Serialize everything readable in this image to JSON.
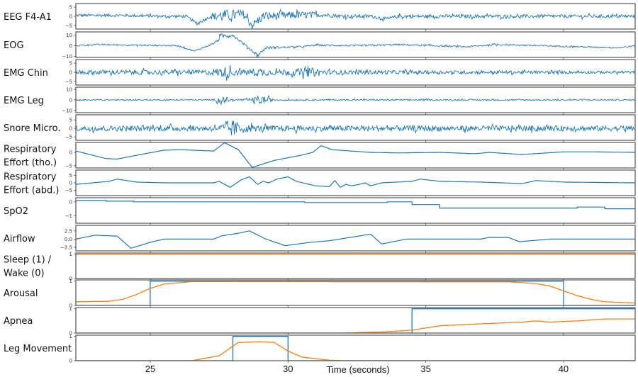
{
  "chart_data": {
    "type": "line",
    "xlabel": "Time (seconds)",
    "xlim": [
      22.3,
      42.6
    ],
    "xticks": [
      25,
      30,
      35,
      40
    ],
    "colors": {
      "signal": "#1f77b4",
      "prediction": "#ff7f0e"
    },
    "panels": [
      {
        "label": [
          "EEG F4-A1"
        ],
        "ylim": [
          -7,
          7
        ],
        "yticks": [
          5,
          0,
          -5
        ],
        "ytick_labels": [
          "5",
          "0",
          "−5"
        ],
        "kind": "noisy",
        "base": [
          [
            22.3,
            0.5
          ],
          [
            24,
            0.5
          ],
          [
            25.5,
            0
          ],
          [
            26.3,
            0
          ],
          [
            26.7,
            -4
          ],
          [
            27.2,
            0
          ],
          [
            28.4,
            1
          ],
          [
            28.7,
            -5
          ],
          [
            29.1,
            0
          ],
          [
            31,
            1
          ],
          [
            32,
            0
          ],
          [
            33,
            0
          ],
          [
            33.6,
            -1.5
          ],
          [
            34,
            0
          ],
          [
            42.6,
            0
          ]
        ],
        "noise_amp": [
          [
            22.3,
            0.8
          ],
          [
            27.2,
            0.8
          ],
          [
            27.5,
            3.5
          ],
          [
            28.4,
            2.5
          ],
          [
            30.5,
            2
          ],
          [
            31.5,
            1
          ],
          [
            42.6,
            0.9
          ]
        ]
      },
      {
        "label": [
          "EOG"
        ],
        "ylim": [
          -11,
          13
        ],
        "yticks": [
          10,
          0,
          -10
        ],
        "ytick_labels": [
          "10",
          "0",
          "−10"
        ],
        "kind": "noisy",
        "base": [
          [
            22.3,
            0
          ],
          [
            23,
            1
          ],
          [
            26,
            0
          ],
          [
            26.6,
            -5
          ],
          [
            27,
            -1
          ],
          [
            27.3,
            2
          ],
          [
            27.6,
            9
          ],
          [
            28,
            10
          ],
          [
            28.9,
            -9
          ],
          [
            29.2,
            -2
          ],
          [
            30.5,
            -1
          ],
          [
            31,
            0.5
          ],
          [
            32.5,
            0
          ],
          [
            34,
            1
          ],
          [
            36.5,
            -1
          ],
          [
            37.5,
            1
          ],
          [
            38.5,
            0.5
          ],
          [
            42,
            -2
          ],
          [
            42.6,
            0
          ]
        ],
        "noise_amp": [
          [
            22.3,
            0.6
          ],
          [
            27.4,
            0.6
          ],
          [
            27.5,
            2.5
          ],
          [
            28.2,
            1
          ],
          [
            28.9,
            1.5
          ],
          [
            30,
            0.8
          ],
          [
            42.6,
            0.6
          ]
        ]
      },
      {
        "label": [
          "EMG Chin"
        ],
        "ylim": [
          -7,
          7
        ],
        "yticks": [
          5,
          0,
          -5
        ],
        "ytick_labels": [
          "5",
          "0",
          "−5"
        ],
        "kind": "noisy",
        "base": [
          [
            22.3,
            0
          ],
          [
            42.6,
            0
          ]
        ],
        "noise_amp": [
          [
            22.3,
            1.3
          ],
          [
            27,
            1.3
          ],
          [
            27.7,
            3
          ],
          [
            28.3,
            1.5
          ],
          [
            29,
            2.5
          ],
          [
            29.4,
            1.5
          ],
          [
            31,
            2.5
          ],
          [
            31.5,
            1.2
          ],
          [
            35,
            1
          ],
          [
            42.6,
            0.7
          ]
        ]
      },
      {
        "label": [
          "EMG Leg"
        ],
        "ylim": [
          -12,
          12
        ],
        "yticks": [
          10,
          0,
          -10
        ],
        "ytick_labels": [
          "10",
          "0",
          "−10"
        ],
        "kind": "noisy",
        "base": [
          [
            22.3,
            0
          ],
          [
            42.6,
            0
          ]
        ],
        "noise_amp": [
          [
            22.3,
            0.6
          ],
          [
            27.3,
            0.6
          ],
          [
            27.6,
            4
          ],
          [
            28,
            0.8
          ],
          [
            28.6,
            1
          ],
          [
            29,
            4.5
          ],
          [
            29.5,
            0.7
          ],
          [
            42.6,
            0.6
          ]
        ]
      },
      {
        "label": [
          "Snore Micro."
        ],
        "ylim": [
          -7,
          8
        ],
        "yticks": [
          5,
          0,
          -5
        ],
        "ytick_labels": [
          "5",
          "0",
          "−5"
        ],
        "kind": "noisy",
        "base": [
          [
            22.3,
            0
          ],
          [
            42.6,
            0
          ]
        ],
        "noise_amp": [
          [
            22.3,
            1.6
          ],
          [
            27.5,
            1.6
          ],
          [
            27.9,
            5.5
          ],
          [
            28.4,
            2.5
          ],
          [
            29,
            1.7
          ],
          [
            42.6,
            1.6
          ]
        ]
      },
      {
        "label": [
          "Respiratory",
          "Effort (tho.)"
        ],
        "ylim": [
          -5.8,
          3.7
        ],
        "yticks": [
          0,
          -5
        ],
        "ytick_labels": [
          "0",
          "−5"
        ],
        "kind": "smooth",
        "points": [
          [
            22.3,
            0.5
          ],
          [
            23.4,
            -2.3
          ],
          [
            23.8,
            -2.5
          ],
          [
            24.8,
            -0.5
          ],
          [
            25.5,
            0.8
          ],
          [
            26.1,
            1.0
          ],
          [
            27.3,
            0.5
          ],
          [
            27.7,
            3.6
          ],
          [
            28.2,
            1
          ],
          [
            28.7,
            -5.6
          ],
          [
            29.5,
            -3
          ],
          [
            30.5,
            -1
          ],
          [
            30.9,
            0
          ],
          [
            31.2,
            2.5
          ],
          [
            31.6,
            1
          ],
          [
            33,
            0
          ],
          [
            34,
            -0.2
          ],
          [
            35.5,
            0
          ],
          [
            36.8,
            -0.5
          ],
          [
            37.3,
            0
          ],
          [
            38.5,
            -0.8
          ],
          [
            40,
            0.2
          ],
          [
            41,
            0.2
          ],
          [
            42.6,
            0
          ]
        ]
      },
      {
        "label": [
          "Respiratory",
          "Effort (abd.)"
        ],
        "ylim": [
          -8.5,
          8.5
        ],
        "yticks": [
          5,
          0,
          -5
        ],
        "ytick_labels": [
          "5",
          "0",
          "−5"
        ],
        "kind": "smooth",
        "points": [
          [
            22.3,
            -1
          ],
          [
            23.5,
            1
          ],
          [
            23.8,
            2.5
          ],
          [
            24.5,
            0.5
          ],
          [
            25.5,
            0
          ],
          [
            27.3,
            0
          ],
          [
            27.5,
            1
          ],
          [
            27.9,
            -3
          ],
          [
            28.3,
            2
          ],
          [
            28.6,
            4
          ],
          [
            28.9,
            -1
          ],
          [
            29.1,
            1
          ],
          [
            29.3,
            0
          ],
          [
            29.6,
            2.5
          ],
          [
            30,
            4
          ],
          [
            30.3,
            1
          ],
          [
            31,
            -2
          ],
          [
            31.5,
            -2.5
          ],
          [
            31.7,
            1.5
          ],
          [
            31.9,
            -3
          ],
          [
            32.1,
            -1
          ],
          [
            32.3,
            -2
          ],
          [
            32.6,
            -1
          ],
          [
            32.8,
            0
          ],
          [
            33,
            -2
          ],
          [
            33.4,
            0
          ],
          [
            34.5,
            1
          ],
          [
            34.8,
            2.5
          ],
          [
            35.5,
            1
          ],
          [
            37,
            0.5
          ],
          [
            38.5,
            -0.5
          ],
          [
            39,
            1.5
          ],
          [
            40,
            0.5
          ],
          [
            42.6,
            0
          ]
        ]
      },
      {
        "label": [
          "SpO2"
        ],
        "ylim": [
          -1.55,
          0.3
        ],
        "yticks": [
          0,
          -1
        ],
        "ytick_labels": [
          "0",
          "−1"
        ],
        "kind": "step",
        "points": [
          [
            22.3,
            0.1
          ],
          [
            23.4,
            0.05
          ],
          [
            24.4,
            0
          ],
          [
            30.6,
            -0.05
          ],
          [
            33.6,
            0
          ],
          [
            34.5,
            -0.2
          ],
          [
            35.5,
            -0.45
          ],
          [
            40.5,
            -0.38
          ],
          [
            41.5,
            -0.5
          ],
          [
            42.6,
            -0.5
          ]
        ]
      },
      {
        "label": [
          "Airflow"
        ],
        "ylim": [
          -3.6,
          4.2
        ],
        "yticks": [
          2.5,
          0,
          -2.5
        ],
        "ytick_labels": [
          "2.5",
          "0.0",
          "−2.5"
        ],
        "kind": "smooth",
        "points": [
          [
            22.3,
            0
          ],
          [
            23,
            1.2
          ],
          [
            23.8,
            0.9
          ],
          [
            24.3,
            -2.8
          ],
          [
            25,
            -1
          ],
          [
            25.5,
            0
          ],
          [
            27.3,
            0
          ],
          [
            27.6,
            1
          ],
          [
            28.2,
            1.8
          ],
          [
            28.6,
            2.5
          ],
          [
            29.2,
            0
          ],
          [
            29.9,
            -2
          ],
          [
            30.8,
            -1
          ],
          [
            31.5,
            -0.5
          ],
          [
            33,
            1.5
          ],
          [
            33.4,
            -1.5
          ],
          [
            34.3,
            0
          ],
          [
            37,
            0
          ],
          [
            37.3,
            0.5
          ],
          [
            38,
            0.5
          ],
          [
            38.4,
            -0.8
          ],
          [
            39.5,
            0
          ],
          [
            42.6,
            0
          ]
        ]
      },
      {
        "label": [
          "Sleep (1) /",
          "Wake (0)"
        ],
        "ylim": [
          0,
          1.05
        ],
        "yticks": [
          1,
          0
        ],
        "ytick_labels": [
          "1",
          "0"
        ],
        "kind": "event",
        "truth": [
          [
            22.3,
            1
          ],
          [
            42.6,
            1
          ]
        ],
        "pred": [
          [
            22.3,
            1
          ],
          [
            42.6,
            1
          ]
        ]
      },
      {
        "label": [
          "Arousal"
        ],
        "ylim": [
          0,
          1.05
        ],
        "yticks": [
          1,
          0
        ],
        "ytick_labels": [
          "1",
          "0"
        ],
        "kind": "event",
        "truth": [
          [
            22.3,
            0
          ],
          [
            25,
            0
          ],
          [
            25,
            1
          ],
          [
            40,
            1
          ],
          [
            40,
            0
          ],
          [
            42.6,
            0
          ]
        ],
        "pred": [
          [
            22.3,
            0.15
          ],
          [
            23.5,
            0.17
          ],
          [
            24,
            0.25
          ],
          [
            24.5,
            0.45
          ],
          [
            25,
            0.7
          ],
          [
            25.5,
            0.88
          ],
          [
            26.5,
            0.98
          ],
          [
            38,
            0.97
          ],
          [
            39,
            0.9
          ],
          [
            39.5,
            0.8
          ],
          [
            40,
            0.6
          ],
          [
            40.5,
            0.4
          ],
          [
            41,
            0.25
          ],
          [
            41.5,
            0.15
          ],
          [
            42.6,
            0.1
          ]
        ]
      },
      {
        "label": [
          "Apnea"
        ],
        "ylim": [
          0,
          1.05
        ],
        "yticks": [
          1,
          0
        ],
        "ytick_labels": [
          "1",
          "0"
        ],
        "kind": "event",
        "truth": [
          [
            22.3,
            0
          ],
          [
            34.5,
            0
          ],
          [
            34.5,
            1
          ],
          [
            42.6,
            1
          ]
        ],
        "pred": [
          [
            22.3,
            0
          ],
          [
            32,
            0
          ],
          [
            33.5,
            0.05
          ],
          [
            34.5,
            0.12
          ],
          [
            35.5,
            0.3
          ],
          [
            37,
            0.38
          ],
          [
            38.5,
            0.45
          ],
          [
            39,
            0.5
          ],
          [
            39.5,
            0.45
          ],
          [
            40.5,
            0.5
          ],
          [
            41.5,
            0.58
          ],
          [
            42.6,
            0.58
          ]
        ]
      },
      {
        "label": [
          "Leg Movement"
        ],
        "ylim": [
          0,
          1.05
        ],
        "yticks": [
          1,
          0
        ],
        "ytick_labels": [
          "1",
          "0"
        ],
        "kind": "event",
        "truth": [
          [
            22.3,
            0
          ],
          [
            28,
            0
          ],
          [
            28,
            1
          ],
          [
            30,
            1
          ],
          [
            30,
            0
          ],
          [
            42.6,
            0
          ]
        ],
        "pred": [
          [
            22.3,
            0
          ],
          [
            26.5,
            0
          ],
          [
            27,
            0.1
          ],
          [
            27.5,
            0.2
          ],
          [
            28,
            0.6
          ],
          [
            28.2,
            0.75
          ],
          [
            29,
            0.78
          ],
          [
            29.5,
            0.75
          ],
          [
            30,
            0.4
          ],
          [
            30.5,
            0.15
          ],
          [
            31.5,
            0.02
          ],
          [
            32,
            0
          ],
          [
            42.6,
            0
          ]
        ]
      }
    ]
  }
}
